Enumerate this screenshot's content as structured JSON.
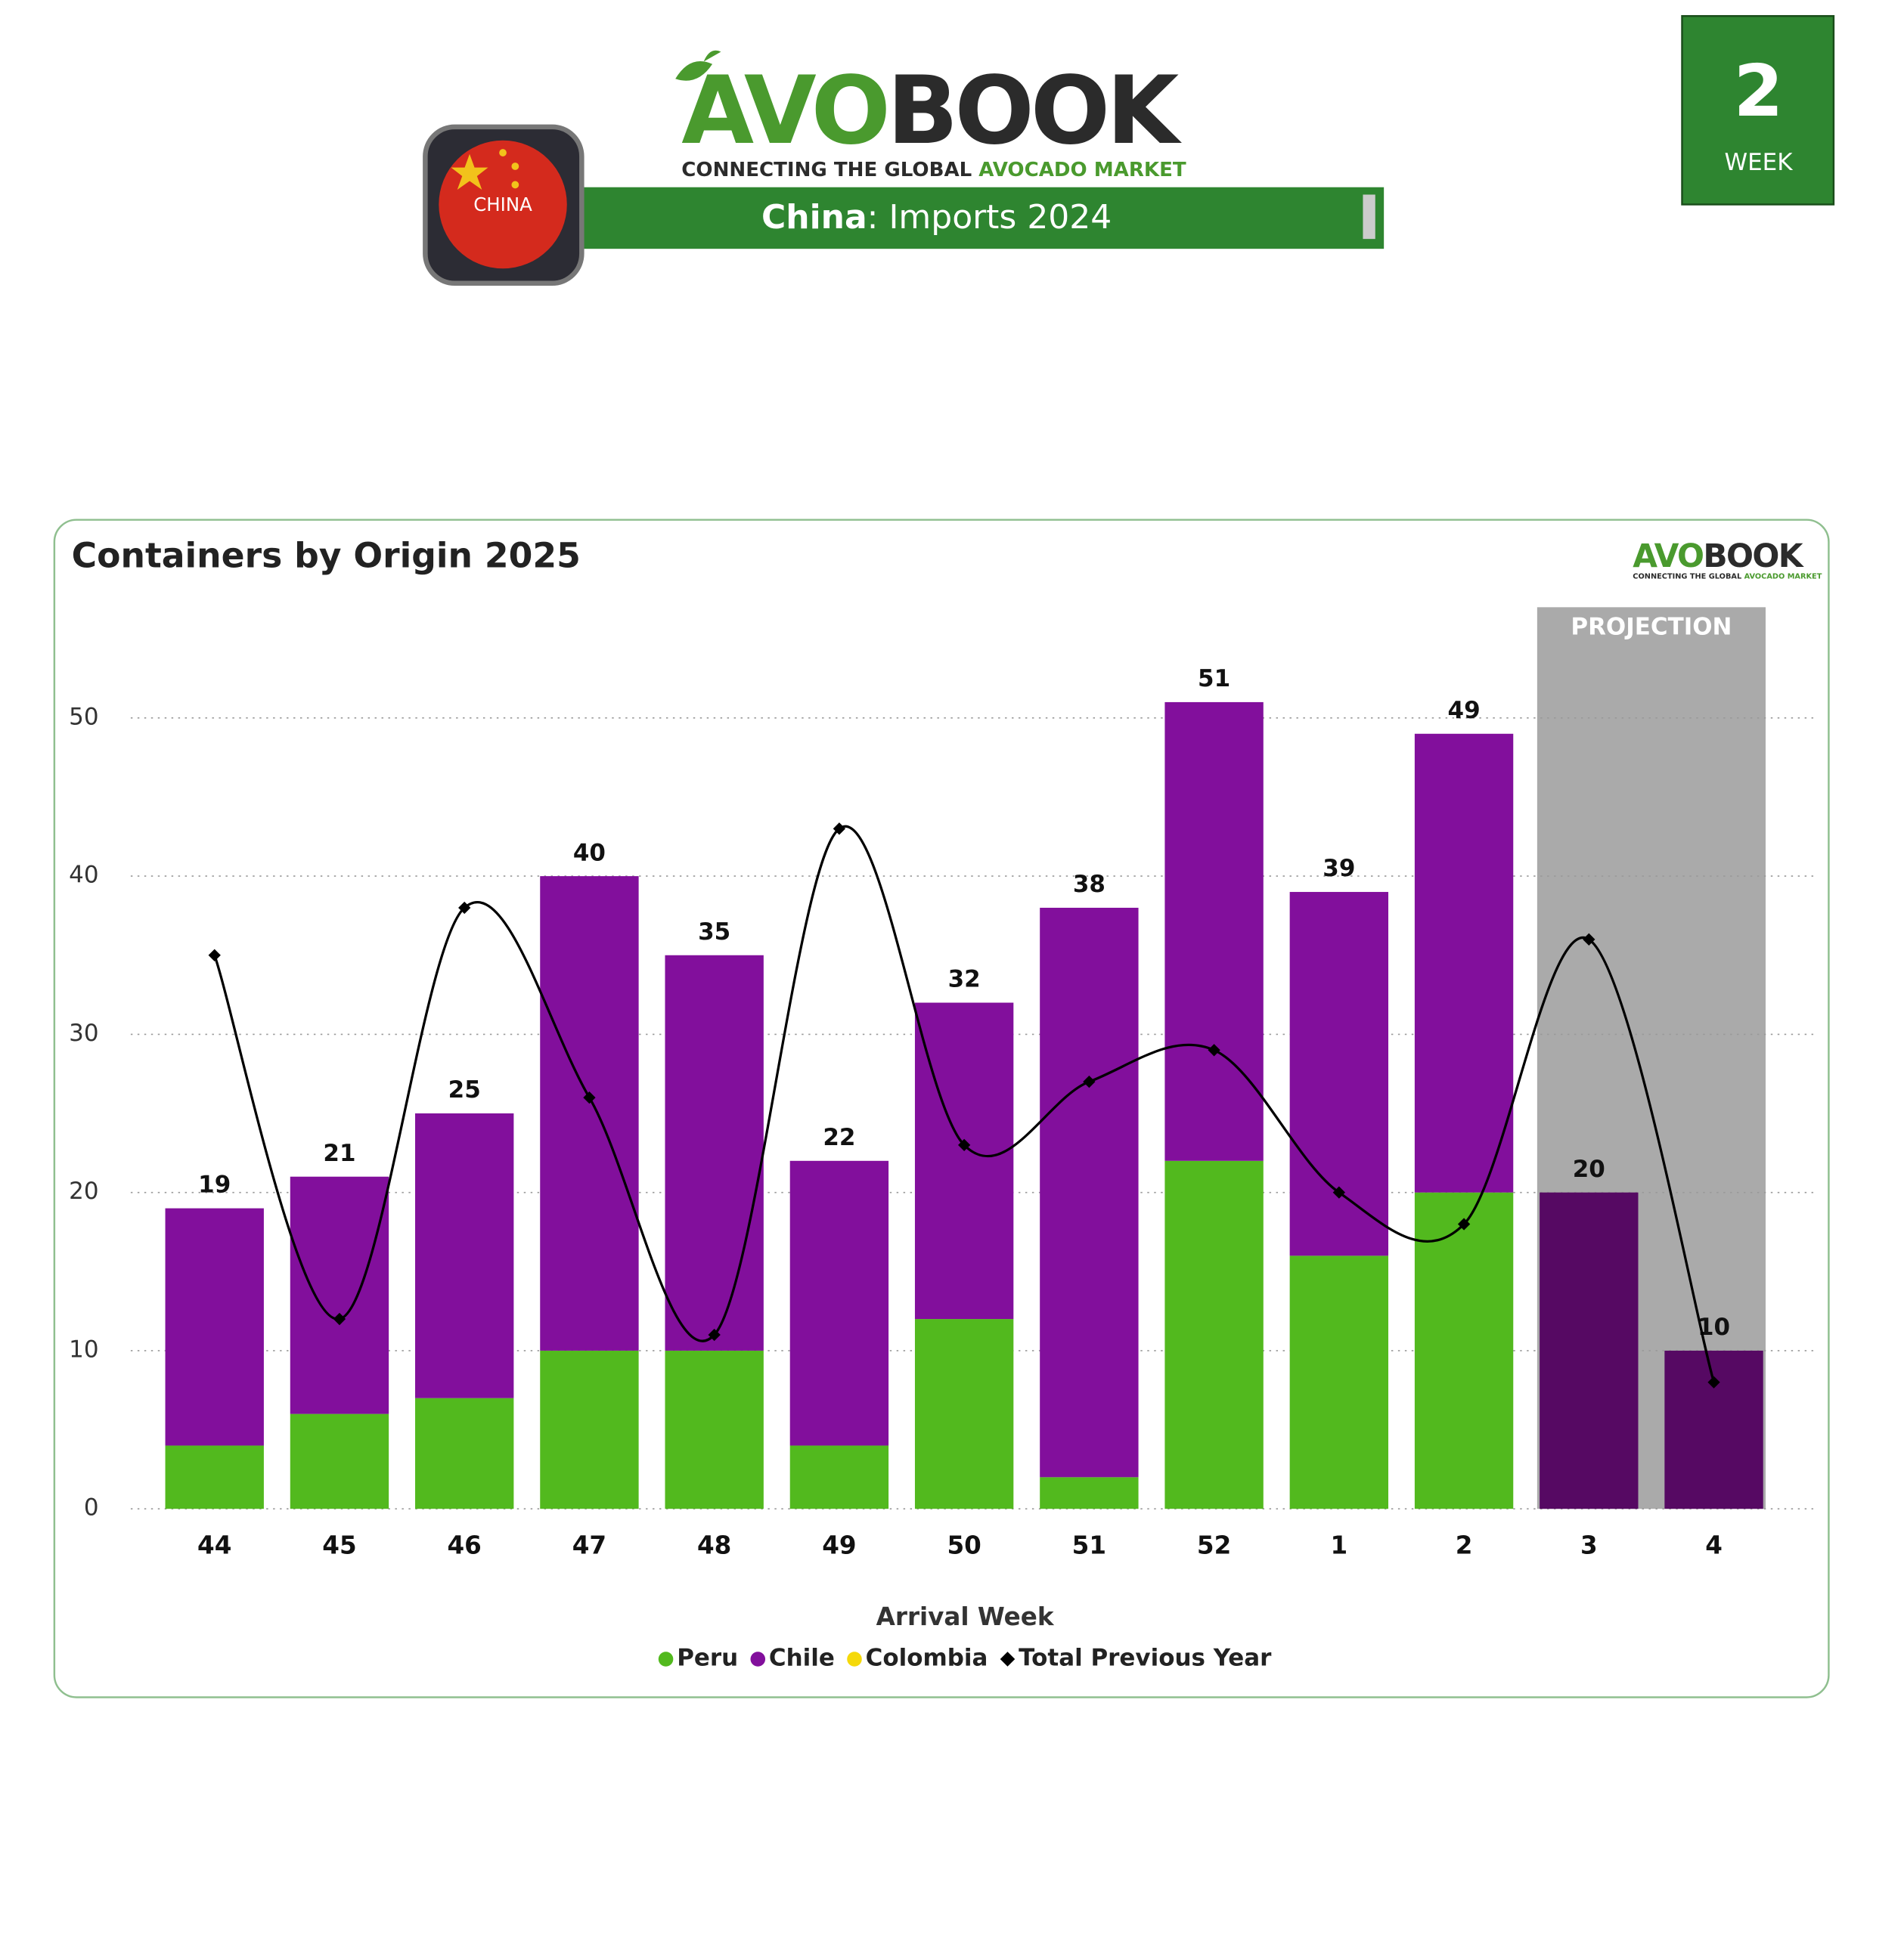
{
  "header": {
    "logo_green": "AVO",
    "logo_dark": "BOOK",
    "tagline_dark": "CONNECTING THE GLOBAL ",
    "tagline_green": "AVOCADO MARKET",
    "flag_label": "CHINA",
    "banner_bold": "China",
    "banner_rest": ": Imports 2024",
    "week_number": "2",
    "week_label": "WEEK"
  },
  "chart_data": {
    "type": "bar",
    "stacked": true,
    "title": "Containers by Origin 2025",
    "x_label": "Arrival Week",
    "categories": [
      "44",
      "45",
      "46",
      "47",
      "48",
      "49",
      "50",
      "51",
      "52",
      "1",
      "2",
      "3",
      "4"
    ],
    "series": [
      {
        "name": "Peru",
        "color": "#52b91e",
        "values": [
          4,
          6,
          7,
          10,
          10,
          4,
          12,
          2,
          22,
          16,
          20,
          null,
          null
        ]
      },
      {
        "name": "Chile",
        "color": "#820f9c",
        "values": [
          15,
          15,
          18,
          30,
          25,
          18,
          20,
          36,
          29,
          23,
          29,
          20,
          10
        ]
      },
      {
        "name": "Colombia",
        "color": "#f5d90a",
        "values": [
          null,
          null,
          null,
          null,
          null,
          null,
          null,
          null,
          null,
          null,
          null,
          null,
          null
        ]
      },
      {
        "name": "Total Previous Year",
        "type": "line",
        "color": "#000000",
        "values": [
          35,
          12,
          38,
          26,
          11,
          43,
          23,
          27,
          29,
          20,
          18,
          36,
          8
        ]
      }
    ],
    "totals": [
      19,
      21,
      25,
      40,
      35,
      22,
      32,
      38,
      51,
      39,
      49,
      20,
      10
    ],
    "projection": {
      "label": "PROJECTION",
      "from": "3",
      "color": "#560963",
      "band_color": "#aaaaaa"
    },
    "ylim": [
      0,
      57
    ],
    "yticks": [
      0,
      10,
      20,
      30,
      40,
      50
    ],
    "grid": true,
    "legend": "bottom"
  }
}
